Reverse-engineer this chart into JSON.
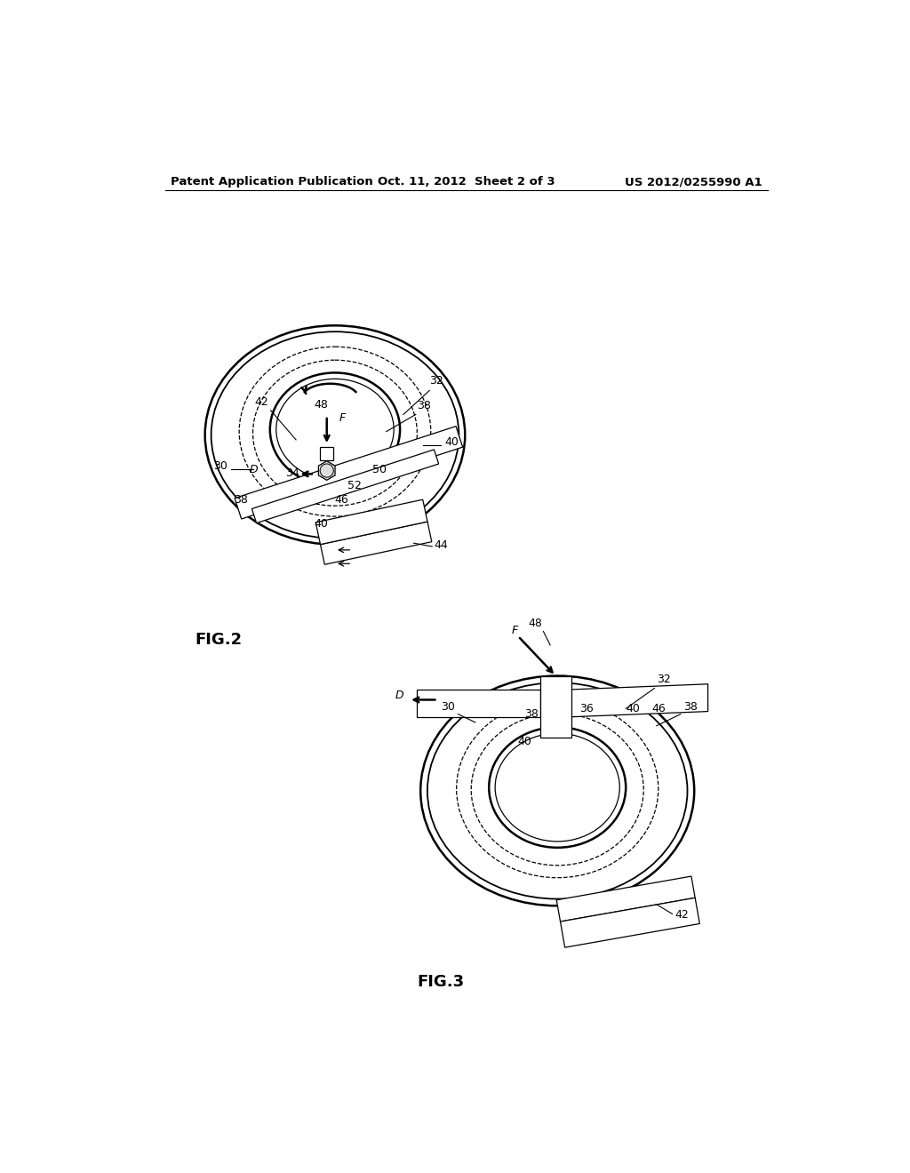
{
  "background_color": "#ffffff",
  "line_color": "#000000",
  "header_left": "Patent Application Publication",
  "header_center": "Oct. 11, 2012  Sheet 2 of 3",
  "header_right": "US 2012/0255990 A1",
  "fig2_label": "FIG.2",
  "fig3_label": "FIG.3",
  "fontsize_header": 9.5,
  "fontsize_labels": 9,
  "fontsize_fig": 13
}
